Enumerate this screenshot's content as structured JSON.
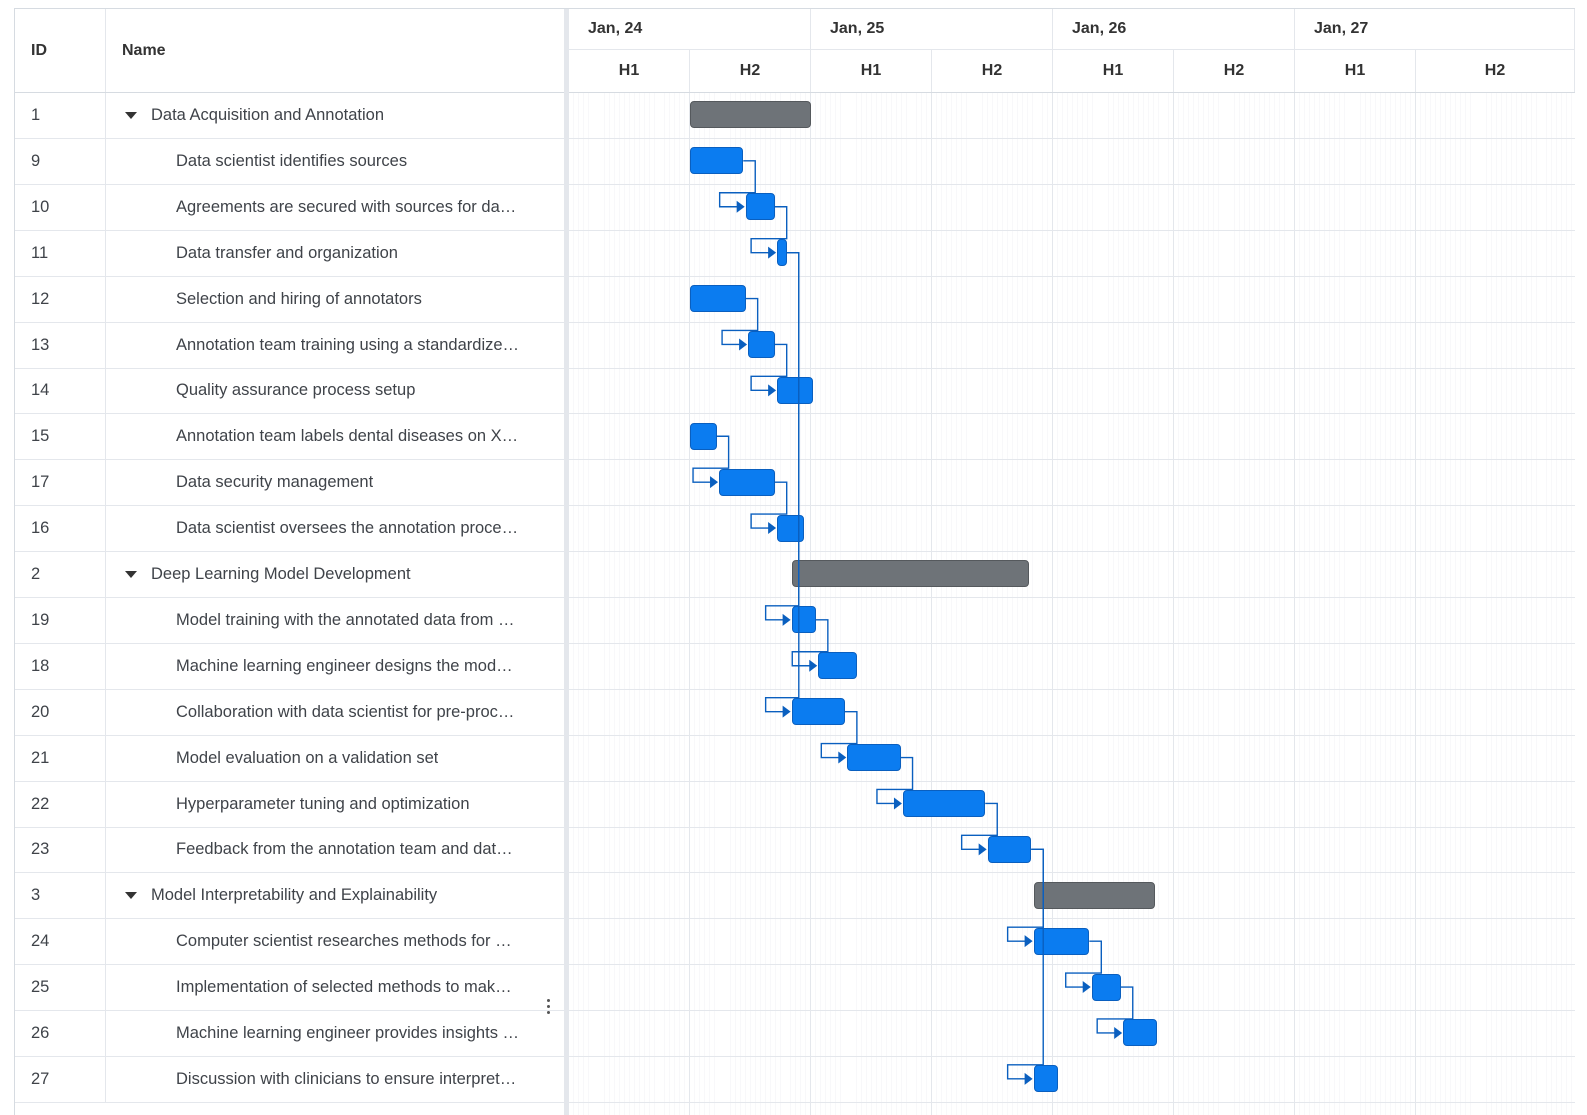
{
  "columns": {
    "id": "ID",
    "name": "Name"
  },
  "scale": {
    "years": [
      "Jan, 24",
      "Jan, 25",
      "Jan, 26",
      "Jan, 27"
    ],
    "halves": [
      "H1",
      "H2",
      "H1",
      "H2",
      "H1",
      "H2",
      "H1",
      "H2"
    ]
  },
  "colors": {
    "task": "#0b7cf0",
    "project": "#6e7378",
    "link": "#0a5fbf"
  },
  "rows": [
    {
      "id": "1",
      "name": "Data Acquisition and Annotation",
      "type": "project",
      "start": 0.5,
      "dur": 0.5
    },
    {
      "id": "9",
      "name": "Data scientist identifies sources",
      "type": "task",
      "start": 0.5,
      "dur": 0.22
    },
    {
      "id": "10",
      "name": "Agreements are secured with sources for da…",
      "type": "task",
      "start": 0.73,
      "dur": 0.12
    },
    {
      "id": "11",
      "name": "Data transfer and organization",
      "type": "task",
      "start": 0.86,
      "dur": 0.04
    },
    {
      "id": "12",
      "name": "Selection and hiring of annotators",
      "type": "task",
      "start": 0.5,
      "dur": 0.23
    },
    {
      "id": "13",
      "name": "Annotation team training using a standardize…",
      "type": "task",
      "start": 0.74,
      "dur": 0.11
    },
    {
      "id": "14",
      "name": "Quality assurance process setup",
      "type": "task",
      "start": 0.86,
      "dur": 0.15
    },
    {
      "id": "15",
      "name": "Annotation team labels dental diseases on X…",
      "type": "task",
      "start": 0.5,
      "dur": 0.11
    },
    {
      "id": "17",
      "name": "Data security management",
      "type": "task",
      "start": 0.62,
      "dur": 0.23
    },
    {
      "id": "16",
      "name": "Data scientist oversees the annotation proce…",
      "type": "task",
      "start": 0.86,
      "dur": 0.11
    },
    {
      "id": "2",
      "name": "Deep Learning Model Development",
      "type": "project",
      "start": 0.92,
      "dur": 0.98
    },
    {
      "id": "19",
      "name": "Model training with the annotated data from …",
      "type": "task",
      "start": 0.92,
      "dur": 0.1
    },
    {
      "id": "18",
      "name": "Machine learning engineer designs the mod…",
      "type": "task",
      "start": 1.03,
      "dur": 0.16
    },
    {
      "id": "20",
      "name": "Collaboration with data scientist for pre-proc…",
      "type": "task",
      "start": 0.92,
      "dur": 0.22
    },
    {
      "id": "21",
      "name": "Model evaluation on a validation set",
      "type": "task",
      "start": 1.15,
      "dur": 0.22
    },
    {
      "id": "22",
      "name": "Hyperparameter tuning and optimization",
      "type": "task",
      "start": 1.38,
      "dur": 0.34
    },
    {
      "id": "23",
      "name": "Feedback from the annotation team and dat…",
      "type": "task",
      "start": 1.73,
      "dur": 0.18
    },
    {
      "id": "3",
      "name": "Model Interpretability and Explainability",
      "type": "project",
      "start": 1.92,
      "dur": 0.5
    },
    {
      "id": "24",
      "name": "Computer scientist researches methods for …",
      "type": "task",
      "start": 1.92,
      "dur": 0.23
    },
    {
      "id": "25",
      "name": "Implementation of selected methods to mak…",
      "type": "task",
      "start": 2.16,
      "dur": 0.12
    },
    {
      "id": "26",
      "name": "Machine learning engineer provides insights …",
      "type": "task",
      "start": 2.29,
      "dur": 0.14
    },
    {
      "id": "27",
      "name": "Discussion with clinicians to ensure interpret…",
      "type": "task",
      "start": 1.92,
      "dur": 0.1
    }
  ],
  "links": [
    [
      "9",
      "10"
    ],
    [
      "10",
      "11"
    ],
    [
      "12",
      "13"
    ],
    [
      "13",
      "14"
    ],
    [
      "15",
      "17"
    ],
    [
      "17",
      "16"
    ],
    [
      "11",
      "19"
    ],
    [
      "19",
      "18"
    ],
    [
      "11",
      "20"
    ],
    [
      "20",
      "21"
    ],
    [
      "21",
      "22"
    ],
    [
      "22",
      "23"
    ],
    [
      "23",
      "24"
    ],
    [
      "24",
      "25"
    ],
    [
      "25",
      "26"
    ],
    [
      "23",
      "27"
    ]
  ]
}
